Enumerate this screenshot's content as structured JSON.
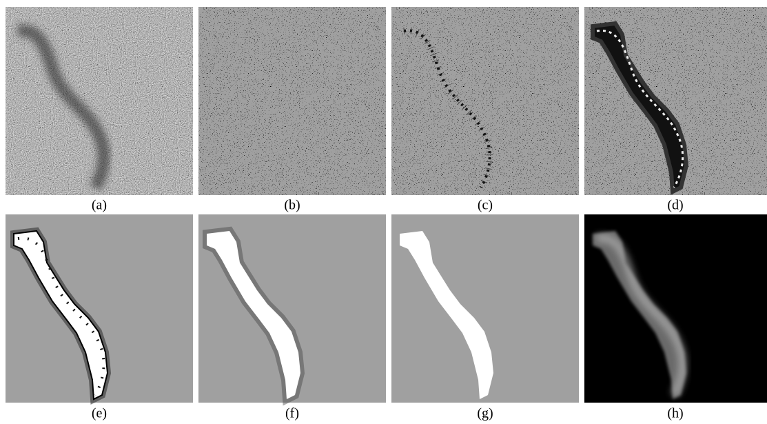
{
  "panels": [
    {
      "label": "(a)"
    },
    {
      "label": "(b)"
    },
    {
      "label": "(c)"
    },
    {
      "label": "(d)"
    },
    {
      "label": "(e)"
    },
    {
      "label": "(f)"
    },
    {
      "label": "(g)"
    },
    {
      "label": "(h)"
    }
  ]
}
